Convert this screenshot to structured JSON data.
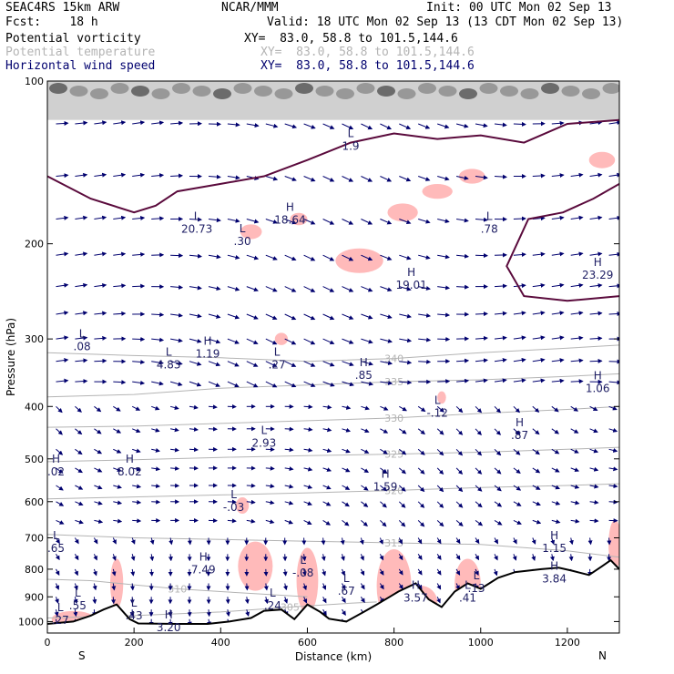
{
  "header": {
    "model": "SEAC4RS 15km ARW",
    "center": "NCAR/MMM",
    "init": "Init: 00 UTC Mon 02 Sep 13",
    "fcst": "Fcst:    18 h",
    "valid": "Valid: 18 UTC Mon 02 Sep 13 (13 CDT Mon 02 Sep 13)",
    "fields": [
      {
        "name": "Potential vorticity",
        "xy": "XY=  83.0, 58.8 to 101.5,144.6",
        "color": "#000000"
      },
      {
        "name": "Potential temperature",
        "xy": "XY=  83.0, 58.8 to 101.5,144.6",
        "color": "#b4b4b4"
      },
      {
        "name": "Horizontal wind speed",
        "xy": "XY=  83.0, 58.8 to 101.5,144.6",
        "color": "#00006e"
      }
    ]
  },
  "chart_data": {
    "type": "cross-section",
    "xlabel": "Distance (km)",
    "ylabel": "Pressure (hPa)",
    "xlim": [
      0,
      1320
    ],
    "ylim": [
      1050,
      100
    ],
    "y_log": true,
    "xticks": [
      0,
      200,
      400,
      600,
      800,
      1000,
      1200
    ],
    "yticks": [
      100,
      200,
      300,
      400,
      500,
      600,
      700,
      800,
      900,
      1000
    ],
    "end_labels": {
      "left": "S",
      "right": "N"
    },
    "theta_contours": [
      {
        "label": "305",
        "points": [
          [
            0,
            985
          ],
          [
            200,
            975
          ],
          [
            400,
            960
          ],
          [
            560,
            940
          ],
          [
            700,
            925
          ],
          [
            760,
            920
          ]
        ]
      },
      {
        "label": "310",
        "points": [
          [
            0,
            835
          ],
          [
            100,
            840
          ],
          [
            200,
            855
          ],
          [
            300,
            870
          ],
          [
            400,
            880
          ],
          [
            500,
            890
          ],
          [
            600,
            900
          ]
        ]
      },
      {
        "label": "315",
        "points": [
          [
            0,
            690
          ],
          [
            200,
            700
          ],
          [
            400,
            705
          ],
          [
            600,
            710
          ],
          [
            800,
            715
          ],
          [
            1000,
            720
          ],
          [
            1200,
            740
          ],
          [
            1320,
            760
          ]
        ]
      },
      {
        "label": "320",
        "points": [
          [
            0,
            593
          ],
          [
            200,
            588
          ],
          [
            400,
            583
          ],
          [
            600,
            578
          ],
          [
            800,
            572
          ],
          [
            1000,
            565
          ],
          [
            1200,
            560
          ],
          [
            1320,
            556
          ]
        ]
      },
      {
        "label": "325",
        "points": [
          [
            0,
            506
          ],
          [
            200,
            502
          ],
          [
            400,
            497
          ],
          [
            600,
            493
          ],
          [
            800,
            490
          ],
          [
            1000,
            486
          ],
          [
            1200,
            480
          ],
          [
            1320,
            476
          ]
        ]
      },
      {
        "label": "330",
        "points": [
          [
            0,
            437
          ],
          [
            200,
            435
          ],
          [
            400,
            430
          ],
          [
            600,
            425
          ],
          [
            800,
            420
          ],
          [
            1000,
            412
          ],
          [
            1200,
            405
          ],
          [
            1320,
            400
          ]
        ]
      },
      {
        "label": "335",
        "points": [
          [
            0,
            384
          ],
          [
            200,
            380
          ],
          [
            400,
            370
          ],
          [
            600,
            365
          ],
          [
            800,
            360
          ],
          [
            1000,
            357
          ],
          [
            1200,
            352
          ],
          [
            1320,
            348
          ]
        ]
      },
      {
        "label": "340",
        "points": [
          [
            0,
            318
          ],
          [
            200,
            322
          ],
          [
            400,
            325
          ],
          [
            600,
            330
          ],
          [
            800,
            326
          ],
          [
            1000,
            318
          ],
          [
            1200,
            312
          ],
          [
            1320,
            308
          ]
        ]
      }
    ],
    "pv_contours": [
      [
        [
          0,
          150
        ],
        [
          100,
          165
        ],
        [
          200,
          175
        ],
        [
          250,
          170
        ],
        [
          300,
          160
        ],
        [
          400,
          155
        ],
        [
          500,
          150
        ],
        [
          600,
          140
        ],
        [
          700,
          130
        ],
        [
          800,
          125
        ],
        [
          900,
          128
        ],
        [
          1000,
          126
        ],
        [
          1100,
          130
        ],
        [
          1200,
          120
        ],
        [
          1320,
          118
        ]
      ],
      [
        [
          1320,
          155
        ],
        [
          1260,
          165
        ],
        [
          1190,
          175
        ],
        [
          1110,
          180
        ],
        [
          1060,
          220
        ],
        [
          1100,
          250
        ],
        [
          1200,
          255
        ],
        [
          1320,
          250
        ]
      ]
    ],
    "terrain": [
      [
        0,
        1010
      ],
      [
        60,
        1000
      ],
      [
        100,
        975
      ],
      [
        130,
        950
      ],
      [
        160,
        930
      ],
      [
        190,
        990
      ],
      [
        210,
        1008
      ],
      [
        300,
        1010
      ],
      [
        370,
        1010
      ],
      [
        420,
        1000
      ],
      [
        470,
        985
      ],
      [
        500,
        955
      ],
      [
        540,
        950
      ],
      [
        570,
        990
      ],
      [
        600,
        930
      ],
      [
        630,
        960
      ],
      [
        650,
        988
      ],
      [
        690,
        1000
      ],
      [
        730,
        960
      ],
      [
        760,
        930
      ],
      [
        790,
        900
      ],
      [
        810,
        880
      ],
      [
        850,
        850
      ],
      [
        880,
        910
      ],
      [
        910,
        940
      ],
      [
        940,
        880
      ],
      [
        970,
        850
      ],
      [
        1000,
        870
      ],
      [
        1040,
        830
      ],
      [
        1080,
        810
      ],
      [
        1110,
        805
      ],
      [
        1140,
        800
      ],
      [
        1180,
        795
      ],
      [
        1210,
        805
      ],
      [
        1250,
        820
      ],
      [
        1280,
        790
      ],
      [
        1300,
        770
      ],
      [
        1320,
        800
      ]
    ],
    "pv_highlights": [
      {
        "cx": 470,
        "cy": 190,
        "rx": 25,
        "ry": 18
      },
      {
        "cx": 580,
        "cy": 180,
        "rx": 20,
        "ry": 15
      },
      {
        "cx": 720,
        "cy": 215,
        "rx": 55,
        "ry": 30
      },
      {
        "cx": 820,
        "cy": 175,
        "rx": 35,
        "ry": 22
      },
      {
        "cx": 900,
        "cy": 160,
        "rx": 35,
        "ry": 18
      },
      {
        "cx": 980,
        "cy": 150,
        "rx": 30,
        "ry": 18
      },
      {
        "cx": 1280,
        "cy": 140,
        "rx": 30,
        "ry": 20
      },
      {
        "cx": 540,
        "cy": 300,
        "rx": 15,
        "ry": 15
      },
      {
        "cx": 910,
        "cy": 385,
        "rx": 10,
        "ry": 15
      },
      {
        "cx": 450,
        "cy": 610,
        "rx": 15,
        "ry": 20
      },
      {
        "cx": 160,
        "cy": 850,
        "rx": 15,
        "ry": 60
      },
      {
        "cx": 600,
        "cy": 840,
        "rx": 25,
        "ry": 80
      },
      {
        "cx": 480,
        "cy": 790,
        "rx": 40,
        "ry": 60
      },
      {
        "cx": 800,
        "cy": 860,
        "rx": 40,
        "ry": 90
      },
      {
        "cx": 970,
        "cy": 850,
        "rx": 30,
        "ry": 60
      },
      {
        "cx": 1310,
        "cy": 720,
        "rx": 15,
        "ry": 60
      },
      {
        "cx": 60,
        "cy": 990,
        "rx": 50,
        "ry": 20
      },
      {
        "cx": 860,
        "cy": 920,
        "rx": 40,
        "ry": 40
      }
    ],
    "extrema": [
      {
        "type": "L",
        "value": "20.73",
        "x": 345,
        "p": 185
      },
      {
        "type": "H",
        "value": "18.64",
        "x": 560,
        "p": 178
      },
      {
        "type": "L",
        "value": ".30",
        "x": 450,
        "p": 195
      },
      {
        "type": "L",
        "value": "1.9",
        "x": 700,
        "p": 130
      },
      {
        "type": "L",
        "value": ".78",
        "x": 1020,
        "p": 185
      },
      {
        "type": "H",
        "value": "19.01",
        "x": 840,
        "p": 235
      },
      {
        "type": "H",
        "value": "23.29",
        "x": 1270,
        "p": 225
      },
      {
        "type": "L",
        "value": ".08",
        "x": 80,
        "p": 305
      },
      {
        "type": "L",
        "value": "4.83",
        "x": 280,
        "p": 330
      },
      {
        "type": "H",
        "value": "1.19",
        "x": 370,
        "p": 315
      },
      {
        "type": "L",
        "value": ".27",
        "x": 530,
        "p": 330
      },
      {
        "type": "H",
        "value": ".85",
        "x": 730,
        "p": 345
      },
      {
        "type": "H",
        "value": "1.06",
        "x": 1270,
        "p": 365
      },
      {
        "type": "L",
        "value": "-.12",
        "x": 900,
        "p": 405
      },
      {
        "type": "H",
        "value": ".87",
        "x": 1090,
        "p": 445
      },
      {
        "type": "L",
        "value": "2.93",
        "x": 500,
        "p": 460
      },
      {
        "type": "H",
        "value": ".02",
        "x": 20,
        "p": 520
      },
      {
        "type": "H",
        "value": "8.02",
        "x": 190,
        "p": 520
      },
      {
        "type": "H",
        "value": "1.59",
        "x": 780,
        "p": 555
      },
      {
        "type": "L",
        "value": "-.03",
        "x": 430,
        "p": 605
      },
      {
        "type": "L",
        "value": ".65",
        "x": 20,
        "p": 720
      },
      {
        "type": "H",
        "value": "1.15",
        "x": 1170,
        "p": 720
      },
      {
        "type": "H",
        "value": "7.49",
        "x": 360,
        "p": 790
      },
      {
        "type": "L",
        "value": "-.08",
        "x": 590,
        "p": 800
      },
      {
        "type": "H",
        "value": "3.84",
        "x": 1170,
        "p": 820
      },
      {
        "type": "L",
        "value": ".67",
        "x": 690,
        "p": 865
      },
      {
        "type": "L",
        "value": ".13",
        "x": 990,
        "p": 855
      },
      {
        "type": "H",
        "value": "3.57",
        "x": 850,
        "p": 890
      },
      {
        "type": "L",
        "value": ".41",
        "x": 970,
        "p": 890
      },
      {
        "type": "L",
        "value": ".24",
        "x": 520,
        "p": 920
      },
      {
        "type": "L",
        "value": ".55",
        "x": 70,
        "p": 920
      },
      {
        "type": "L",
        "value": ".43",
        "x": 200,
        "p": 960
      },
      {
        "type": "L",
        "value": ".27",
        "x": 30,
        "p": 980
      },
      {
        "type": "H",
        "value": "3.20",
        "x": 280,
        "p": 1010
      }
    ]
  }
}
